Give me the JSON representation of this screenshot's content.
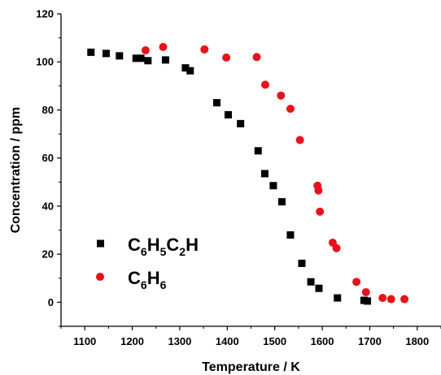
{
  "chart_data": {
    "type": "scatter",
    "xlabel": "Temperature / K",
    "ylabel": "Concentration / ppm",
    "xlim": [
      1050,
      1850
    ],
    "ylim": [
      -10,
      120
    ],
    "xticks": [
      1100,
      1200,
      1300,
      1400,
      1500,
      1600,
      1700,
      1800
    ],
    "yticks": [
      0,
      20,
      40,
      60,
      80,
      100,
      120
    ],
    "grid": false,
    "legend_position": "bottom-left",
    "series": [
      {
        "name": "C6H5C2H",
        "legend": {
          "parts": [
            [
              "C",
              false
            ],
            [
              "6",
              true
            ],
            [
              "H",
              false
            ],
            [
              "5",
              true
            ],
            [
              "C",
              false
            ],
            [
              "2",
              true
            ],
            [
              "H",
              false
            ]
          ]
        },
        "marker": "square",
        "color": "#000000",
        "x": [
          1113,
          1145,
          1173,
          1208,
          1218,
          1233,
          1270,
          1312,
          1322,
          1378,
          1402,
          1428,
          1465,
          1479,
          1497,
          1515,
          1533,
          1557,
          1576,
          1593,
          1632,
          1688,
          1695
        ],
        "y": [
          104,
          103.5,
          102.5,
          101.5,
          101.5,
          100.5,
          100.8,
          97.5,
          96.3,
          83,
          78,
          74.3,
          63,
          53.5,
          48.5,
          41.8,
          28,
          16.2,
          8.5,
          5.8,
          1.8,
          0.8,
          0.5
        ]
      },
      {
        "name": "C6H6",
        "legend": {
          "parts": [
            [
              "C",
              false
            ],
            [
              "6",
              true
            ],
            [
              "H",
              false
            ],
            [
              "6",
              true
            ]
          ]
        },
        "marker": "circle",
        "color": "#e8121b",
        "x": [
          1228,
          1265,
          1352,
          1398,
          1462,
          1480,
          1513,
          1533,
          1553,
          1590,
          1592,
          1595,
          1622,
          1630,
          1672,
          1692,
          1727,
          1745,
          1773
        ],
        "y": [
          104.8,
          106.2,
          105.2,
          101.8,
          102,
          90.5,
          86,
          80.5,
          67.5,
          48.5,
          46.5,
          37.7,
          24.8,
          22.5,
          8.5,
          4.2,
          1.8,
          1.3,
          1.3
        ]
      }
    ]
  }
}
